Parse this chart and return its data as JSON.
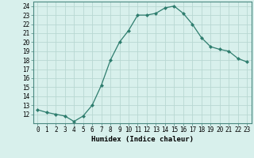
{
  "x": [
    0,
    1,
    2,
    3,
    4,
    5,
    6,
    7,
    8,
    9,
    10,
    11,
    12,
    13,
    14,
    15,
    16,
    17,
    18,
    19,
    20,
    21,
    22,
    23
  ],
  "y": [
    12.5,
    12.2,
    12.0,
    11.8,
    11.2,
    11.8,
    13.0,
    15.2,
    18.0,
    20.0,
    21.3,
    23.0,
    23.0,
    23.2,
    23.8,
    24.0,
    23.2,
    22.0,
    20.5,
    19.5,
    19.2,
    19.0,
    18.2,
    17.8
  ],
  "line_color": "#2e7d6e",
  "marker": "D",
  "marker_size": 2,
  "bg_color": "#d8f0ec",
  "grid_color": "#b8d8d2",
  "xlabel": "Humidex (Indice chaleur)",
  "ylim": [
    11,
    24.5
  ],
  "yticks": [
    12,
    13,
    14,
    15,
    16,
    17,
    18,
    19,
    20,
    21,
    22,
    23,
    24
  ],
  "xlim": [
    -0.5,
    23.5
  ],
  "xticks": [
    0,
    1,
    2,
    3,
    4,
    5,
    6,
    7,
    8,
    9,
    10,
    11,
    12,
    13,
    14,
    15,
    16,
    17,
    18,
    19,
    20,
    21,
    22,
    23
  ],
  "tick_fontsize": 5.5,
  "xlabel_fontsize": 6.5
}
